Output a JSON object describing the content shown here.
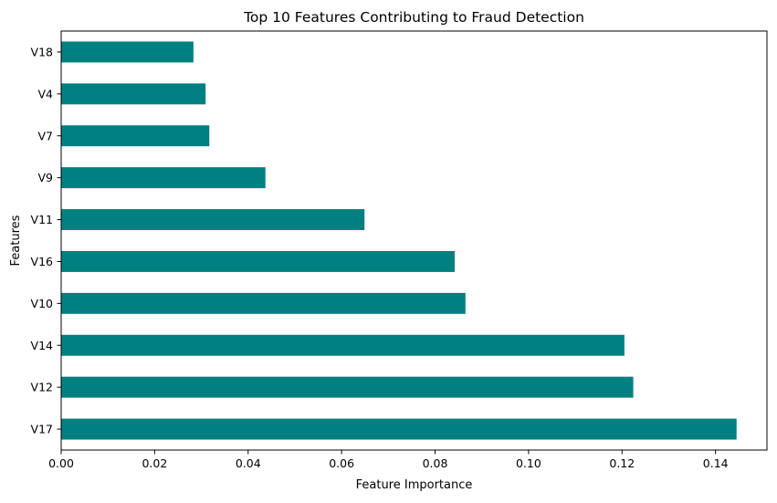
{
  "chart_data": {
    "type": "bar",
    "orientation": "horizontal",
    "title": "Top 10 Features Contributing to Fraud Detection",
    "xlabel": "Feature Importance",
    "ylabel": "Features",
    "categories": [
      "V17",
      "V12",
      "V14",
      "V10",
      "V16",
      "V11",
      "V9",
      "V7",
      "V4",
      "V18"
    ],
    "values": [
      0.1445,
      0.1224,
      0.1205,
      0.0865,
      0.0842,
      0.0649,
      0.0437,
      0.0317,
      0.0309,
      0.0283
    ],
    "xlim": [
      0,
      0.151
    ],
    "xticks": [
      0.0,
      0.02,
      0.04,
      0.06,
      0.08,
      0.1,
      0.12,
      0.14
    ],
    "xtick_labels": [
      "0.00",
      "0.02",
      "0.04",
      "0.06",
      "0.08",
      "0.10",
      "0.12",
      "0.14"
    ],
    "grid": false,
    "bar_color": "#008080"
  }
}
